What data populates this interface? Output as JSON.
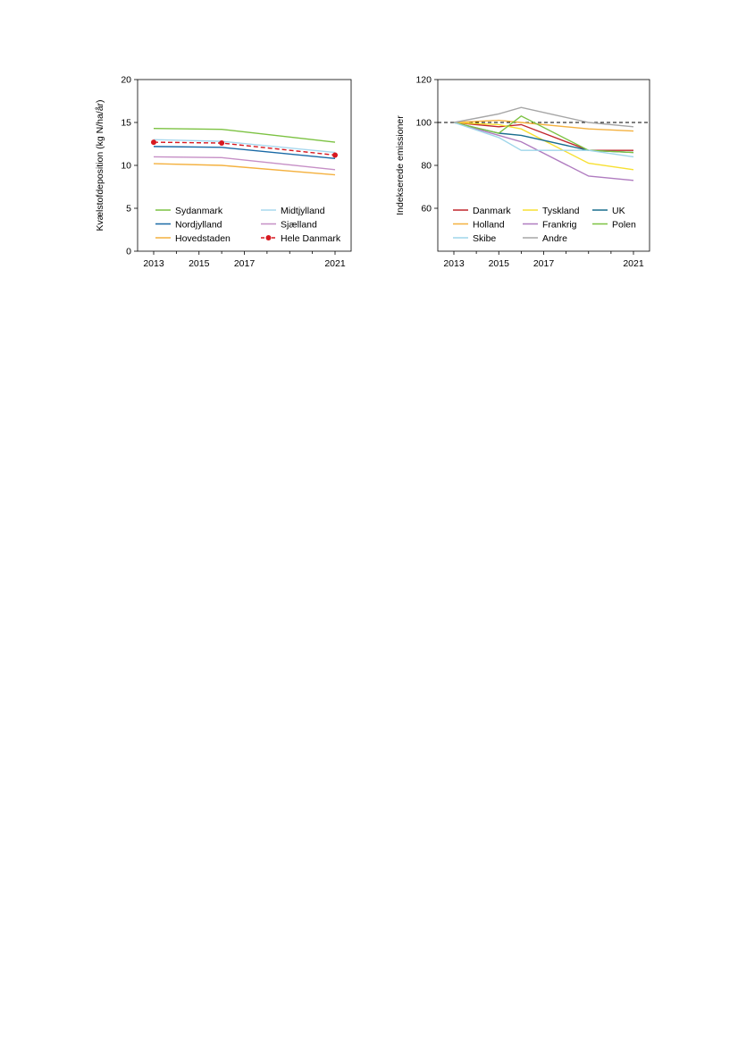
{
  "chart_data": [
    {
      "type": "line",
      "title": "",
      "xlabel": "",
      "ylabel": "Kvælstofdeposition (kg N/ha/år)",
      "x": [
        2013,
        2016,
        2019,
        2021
      ],
      "xticks": [
        "2013",
        "2015",
        "2017",
        "2021"
      ],
      "ylim": [
        0,
        20
      ],
      "yticks": [
        "0",
        "5",
        "10",
        "15",
        "20"
      ],
      "grid": false,
      "legend": "bottom-inside-two-columns",
      "series": [
        {
          "name": "Sydanmark",
          "color": "#7cc242",
          "values": [
            14.3,
            14.2,
            null,
            12.7
          ]
        },
        {
          "name": "Midtjylland",
          "color": "#a8d8ee",
          "values": [
            13.0,
            12.8,
            null,
            11.5
          ]
        },
        {
          "name": "Nordjylland",
          "color": "#1a6aa6",
          "values": [
            12.2,
            12.1,
            null,
            10.8
          ]
        },
        {
          "name": "Sjælland",
          "color": "#c68fc6",
          "values": [
            11.0,
            10.9,
            null,
            9.5
          ]
        },
        {
          "name": "Hovedstaden",
          "color": "#f4b13f",
          "values": [
            10.2,
            10.0,
            null,
            8.9
          ]
        },
        {
          "name": "Hele Danmark",
          "color": "#d71920",
          "values": [
            12.7,
            12.6,
            null,
            11.2
          ],
          "dashed": true,
          "markers": true
        }
      ]
    },
    {
      "type": "line",
      "title": "",
      "xlabel": "",
      "ylabel": "Indekserede emissioner",
      "x": [
        2013,
        2015,
        2016,
        2019,
        2021
      ],
      "xticks": [
        "2013",
        "2015",
        "2017",
        "2021"
      ],
      "ylim": [
        40,
        120
      ],
      "yticks": [
        "60",
        "80",
        "100",
        "120"
      ],
      "reference_line": 100,
      "grid": false,
      "legend": "bottom-inside-three-columns",
      "series": [
        {
          "name": "Danmark",
          "color": "#c1272d",
          "values": [
            100,
            98,
            99,
            87,
            87
          ]
        },
        {
          "name": "Tyskland",
          "color": "#f7e032",
          "values": [
            100,
            99,
            97,
            81,
            78
          ]
        },
        {
          "name": "UK",
          "color": "#1a6e8e",
          "values": [
            100,
            95,
            94,
            87,
            86
          ]
        },
        {
          "name": "Holland",
          "color": "#f4b13f",
          "values": [
            100,
            101,
            100,
            97,
            96
          ]
        },
        {
          "name": "Frankrig",
          "color": "#b07cc0",
          "values": [
            100,
            94,
            91,
            75,
            73
          ]
        },
        {
          "name": "Polen",
          "color": "#7cc242",
          "values": [
            100,
            95,
            103,
            87,
            86
          ]
        },
        {
          "name": "Skibe",
          "color": "#9fd6ea",
          "values": [
            100,
            93,
            87,
            87,
            84
          ]
        },
        {
          "name": "Andre",
          "color": "#a6a6a6",
          "values": [
            100,
            104,
            107,
            100,
            98
          ]
        }
      ]
    }
  ]
}
